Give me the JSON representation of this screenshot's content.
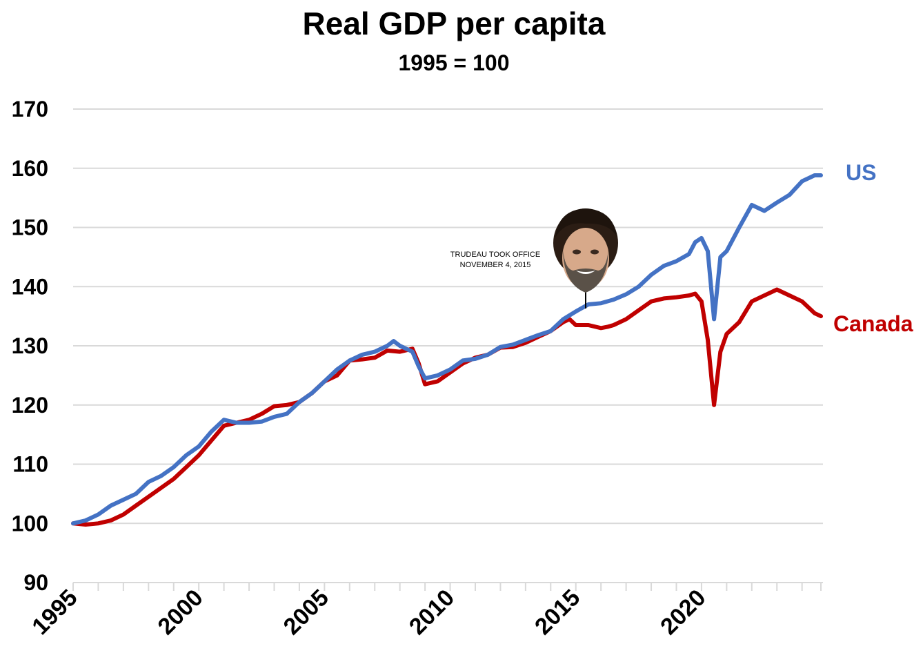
{
  "chart_data": {
    "type": "line",
    "title": "Real GDP per capita",
    "subtitle": "1995 = 100",
    "xlabel": "",
    "ylabel": "",
    "ylim": [
      90,
      170
    ],
    "xlim": [
      1995,
      2024.75
    ],
    "yticks": [
      "90",
      "100",
      "110",
      "120",
      "130",
      "140",
      "150",
      "160",
      "170"
    ],
    "xticks": [
      "1995",
      "2000",
      "2005",
      "2010",
      "2015",
      "2020"
    ],
    "grid": true,
    "legend": "inline-right",
    "series": [
      {
        "name": "US",
        "color": "#4472c4",
        "points": [
          [
            1995,
            100
          ],
          [
            1995.5,
            100.5
          ],
          [
            1996,
            101.5
          ],
          [
            1996.5,
            103
          ],
          [
            1997,
            104
          ],
          [
            1997.5,
            105
          ],
          [
            1998,
            107
          ],
          [
            1998.5,
            108
          ],
          [
            1999,
            109.5
          ],
          [
            1999.5,
            111.5
          ],
          [
            2000,
            113
          ],
          [
            2000.5,
            115.5
          ],
          [
            2001,
            117.5
          ],
          [
            2001.5,
            117
          ],
          [
            2002,
            117
          ],
          [
            2002.5,
            117.2
          ],
          [
            2003,
            118
          ],
          [
            2003.5,
            118.5
          ],
          [
            2004,
            120.5
          ],
          [
            2004.5,
            122
          ],
          [
            2005,
            124
          ],
          [
            2005.5,
            126
          ],
          [
            2006,
            127.5
          ],
          [
            2006.5,
            128.5
          ],
          [
            2007,
            129
          ],
          [
            2007.5,
            130
          ],
          [
            2007.75,
            130.8
          ],
          [
            2008,
            130
          ],
          [
            2008.5,
            129
          ],
          [
            2008.75,
            126.5
          ],
          [
            2009,
            124.5
          ],
          [
            2009.5,
            125
          ],
          [
            2010,
            126
          ],
          [
            2010.5,
            127.5
          ],
          [
            2011,
            127.8
          ],
          [
            2011.5,
            128.5
          ],
          [
            2012,
            129.8
          ],
          [
            2012.5,
            130.2
          ],
          [
            2013,
            131
          ],
          [
            2013.5,
            131.8
          ],
          [
            2014,
            132.5
          ],
          [
            2014.5,
            134.5
          ],
          [
            2015,
            135.8
          ],
          [
            2015.5,
            137
          ],
          [
            2016,
            137.2
          ],
          [
            2016.5,
            137.8
          ],
          [
            2017,
            138.7
          ],
          [
            2017.5,
            140
          ],
          [
            2018,
            142
          ],
          [
            2018.5,
            143.5
          ],
          [
            2019,
            144.3
          ],
          [
            2019.5,
            145.5
          ],
          [
            2019.75,
            147.5
          ],
          [
            2020,
            148.2
          ],
          [
            2020.25,
            146
          ],
          [
            2020.5,
            134.5
          ],
          [
            2020.75,
            145
          ],
          [
            2021,
            146
          ],
          [
            2021.5,
            150
          ],
          [
            2022,
            153.8
          ],
          [
            2022.5,
            152.8
          ],
          [
            2023,
            154.2
          ],
          [
            2023.5,
            155.5
          ],
          [
            2024,
            157.8
          ],
          [
            2024.5,
            158.8
          ],
          [
            2024.75,
            158.8
          ]
        ]
      },
      {
        "name": "Canada",
        "color": "#c00000",
        "points": [
          [
            1995,
            100
          ],
          [
            1995.5,
            99.8
          ],
          [
            1996,
            100
          ],
          [
            1996.5,
            100.5
          ],
          [
            1997,
            101.5
          ],
          [
            1997.5,
            103
          ],
          [
            1998,
            104.5
          ],
          [
            1998.5,
            106
          ],
          [
            1999,
            107.5
          ],
          [
            1999.5,
            109.5
          ],
          [
            2000,
            111.5
          ],
          [
            2000.5,
            114
          ],
          [
            2001,
            116.5
          ],
          [
            2001.5,
            117
          ],
          [
            2002,
            117.5
          ],
          [
            2002.5,
            118.5
          ],
          [
            2003,
            119.8
          ],
          [
            2003.5,
            120
          ],
          [
            2004,
            120.5
          ],
          [
            2004.5,
            122
          ],
          [
            2005,
            124
          ],
          [
            2005.5,
            125
          ],
          [
            2006,
            127.5
          ],
          [
            2006.5,
            127.7
          ],
          [
            2007,
            128
          ],
          [
            2007.5,
            129.2
          ],
          [
            2008,
            129
          ],
          [
            2008.5,
            129.5
          ],
          [
            2008.75,
            127
          ],
          [
            2009,
            123.5
          ],
          [
            2009.5,
            124
          ],
          [
            2010,
            125.5
          ],
          [
            2010.5,
            127
          ],
          [
            2011,
            128
          ],
          [
            2011.5,
            128.5
          ],
          [
            2012,
            129.7
          ],
          [
            2012.5,
            129.8
          ],
          [
            2013,
            130.5
          ],
          [
            2013.5,
            131.5
          ],
          [
            2014,
            132.5
          ],
          [
            2014.5,
            134
          ],
          [
            2014.75,
            134.5
          ],
          [
            2015,
            133.5
          ],
          [
            2015.5,
            133.5
          ],
          [
            2016,
            133
          ],
          [
            2016.25,
            133.2
          ],
          [
            2016.5,
            133.5
          ],
          [
            2017,
            134.5
          ],
          [
            2017.5,
            136
          ],
          [
            2018,
            137.5
          ],
          [
            2018.5,
            138
          ],
          [
            2019,
            138.2
          ],
          [
            2019.5,
            138.5
          ],
          [
            2019.75,
            138.8
          ],
          [
            2020,
            137.5
          ],
          [
            2020.25,
            131
          ],
          [
            2020.5,
            120
          ],
          [
            2020.75,
            129
          ],
          [
            2021,
            132
          ],
          [
            2021.5,
            134
          ],
          [
            2022,
            137.5
          ],
          [
            2022.5,
            138.5
          ],
          [
            2023,
            139.5
          ],
          [
            2023.5,
            138.5
          ],
          [
            2024,
            137.5
          ],
          [
            2024.5,
            135.5
          ],
          [
            2024.75,
            135
          ]
        ]
      }
    ],
    "annotations": [
      {
        "x": 2015,
        "y": 135.5,
        "label_line1": "TRUDEAU TOOK OFFICE",
        "label_line2": "NOVEMBER 4, 2015",
        "image": "portrait"
      }
    ]
  }
}
